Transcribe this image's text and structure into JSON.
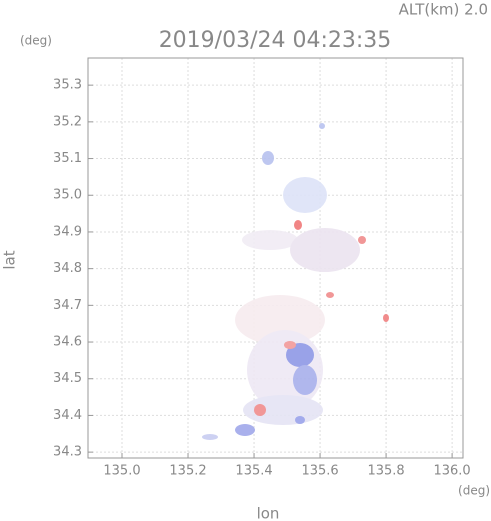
{
  "chart_data": {
    "type": "map",
    "title": "2019/03/24 04:23:35",
    "subtitle": "ALT(km) 2.0",
    "y_unit": "(deg)",
    "x_unit": "(deg)",
    "xlabel": "lon",
    "ylabel": "lat",
    "xlim": [
      134.897,
      136.033
    ],
    "ylim": [
      34.284,
      35.374
    ],
    "xticks": [
      {
        "value": 135.0,
        "label": "135.0"
      },
      135.2,
      135.4,
      135.6,
      135.8,
      {
        "value": 136.0,
        "label": "136.0"
      }
    ],
    "yticks": [
      34.3,
      34.4,
      34.5,
      34.6,
      34.7,
      34.8,
      34.9,
      {
        "value": 35.0,
        "label": "35.0"
      },
      35.1,
      35.2,
      35.3
    ],
    "grid": true
  }
}
